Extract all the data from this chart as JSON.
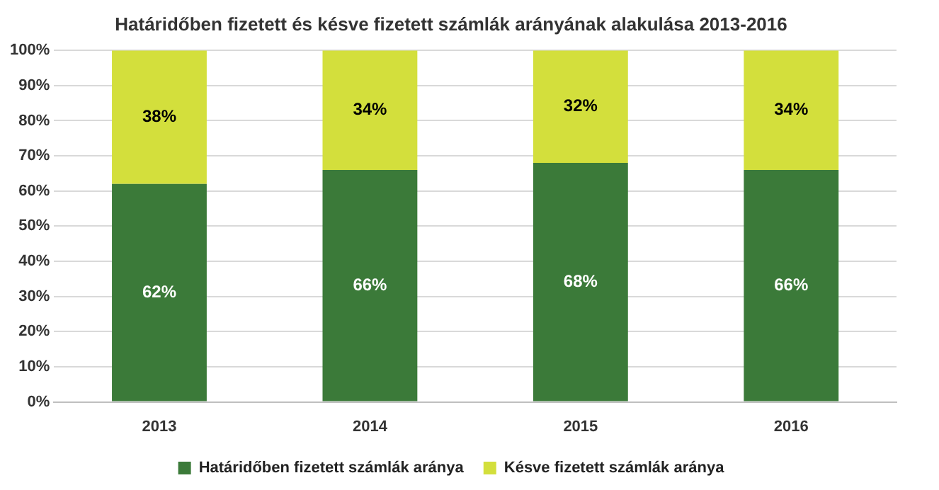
{
  "chart_data": {
    "type": "bar",
    "title": "Határidőben fizetett és késve fizetett számlák arányának alakulása 2013-2016",
    "categories": [
      "2013",
      "2014",
      "2015",
      "2016"
    ],
    "stacked": true,
    "series": [
      {
        "name": "Határidőben fizetett számlák aránya",
        "color": "#3b7a39",
        "values": [
          62,
          66,
          68,
          66
        ],
        "value_labels": [
          "62%",
          "66%",
          "68%",
          "66%"
        ]
      },
      {
        "name": "Késve fizetett számlák aránya",
        "color": "#d3df3c",
        "values": [
          38,
          34,
          32,
          34
        ],
        "value_labels": [
          "38%",
          "34%",
          "32%",
          "34%"
        ]
      }
    ],
    "ylim": [
      0,
      100
    ],
    "yticks": [
      {
        "value": 0,
        "label": "0%"
      },
      {
        "value": 10,
        "label": "10%"
      },
      {
        "value": 20,
        "label": "20%"
      },
      {
        "value": 30,
        "label": "30%"
      },
      {
        "value": 40,
        "label": "40%"
      },
      {
        "value": 50,
        "label": "50%"
      },
      {
        "value": 60,
        "label": "60%"
      },
      {
        "value": 70,
        "label": "70%"
      },
      {
        "value": 80,
        "label": "80%"
      },
      {
        "value": 90,
        "label": "90%"
      },
      {
        "value": 100,
        "label": "100%"
      }
    ],
    "grid": "y",
    "legend": "bottom"
  }
}
